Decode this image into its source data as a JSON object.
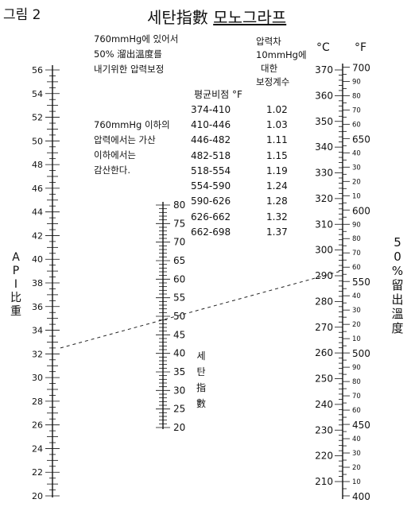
{
  "header": {
    "figure_label": "그림 2",
    "title_main": "세탄指數 ",
    "title_underlined": "모노그라프"
  },
  "notes": {
    "pressure_note": [
      "760mmHg에 있어서",
      "50% 溜出溫度를",
      "내기위한 압력보정"
    ],
    "subtract_note": [
      "760mmHg 이하의",
      "압력에서는 가산",
      "이하에서는",
      "감산한다."
    ]
  },
  "correction_table": {
    "col_header_factor": [
      "압력차",
      "10mmHg에",
      "대한",
      "보정계수"
    ],
    "col_header_range": "평균비점 °F",
    "rows": [
      {
        "range": "374-410",
        "factor": "1.02"
      },
      {
        "range": "410-446",
        "factor": "1.03"
      },
      {
        "range": "446-482",
        "factor": "1.11"
      },
      {
        "range": "482-518",
        "factor": "1.15"
      },
      {
        "range": "518-554",
        "factor": "1.19"
      },
      {
        "range": "554-590",
        "factor": "1.24"
      },
      {
        "range": "590-626",
        "factor": "1.28"
      },
      {
        "range": "626-662",
        "factor": "1.32"
      },
      {
        "range": "662-698",
        "factor": "1.37"
      }
    ]
  },
  "scales": {
    "api": {
      "name": "API比重",
      "min": 20,
      "max": 56,
      "label_step": 2,
      "labels": [
        "56",
        "54",
        "52",
        "50",
        "48",
        "46",
        "44",
        "42",
        "40",
        "38",
        "36",
        "34",
        "32",
        "30",
        "28",
        "26",
        "24",
        "22",
        "20"
      ]
    },
    "cetane": {
      "name": "세탄指數",
      "min": 20,
      "max": 80,
      "label_step": 5,
      "labels": [
        "80",
        "75",
        "70",
        "65",
        "60",
        "55",
        "50",
        "45",
        "40",
        "35",
        "30",
        "25",
        "20"
      ]
    },
    "temp_c": {
      "unit": "°C",
      "min": 210,
      "max": 370,
      "label_step": 10,
      "labels": [
        "370",
        "360",
        "350",
        "340",
        "330",
        "320",
        "310",
        "300",
        "290",
        "280",
        "270",
        "260",
        "250",
        "240",
        "230",
        "220",
        "210"
      ]
    },
    "temp_f": {
      "unit": "°F",
      "min": 400,
      "max": 700,
      "label_step": 10,
      "major": [
        "700",
        "650",
        "600",
        "550",
        "500",
        "450",
        "400"
      ]
    },
    "pct_label": "50%留出溫度"
  },
  "example_line": {
    "api": 32.5,
    "cetane": 52,
    "temp_c": 292
  }
}
